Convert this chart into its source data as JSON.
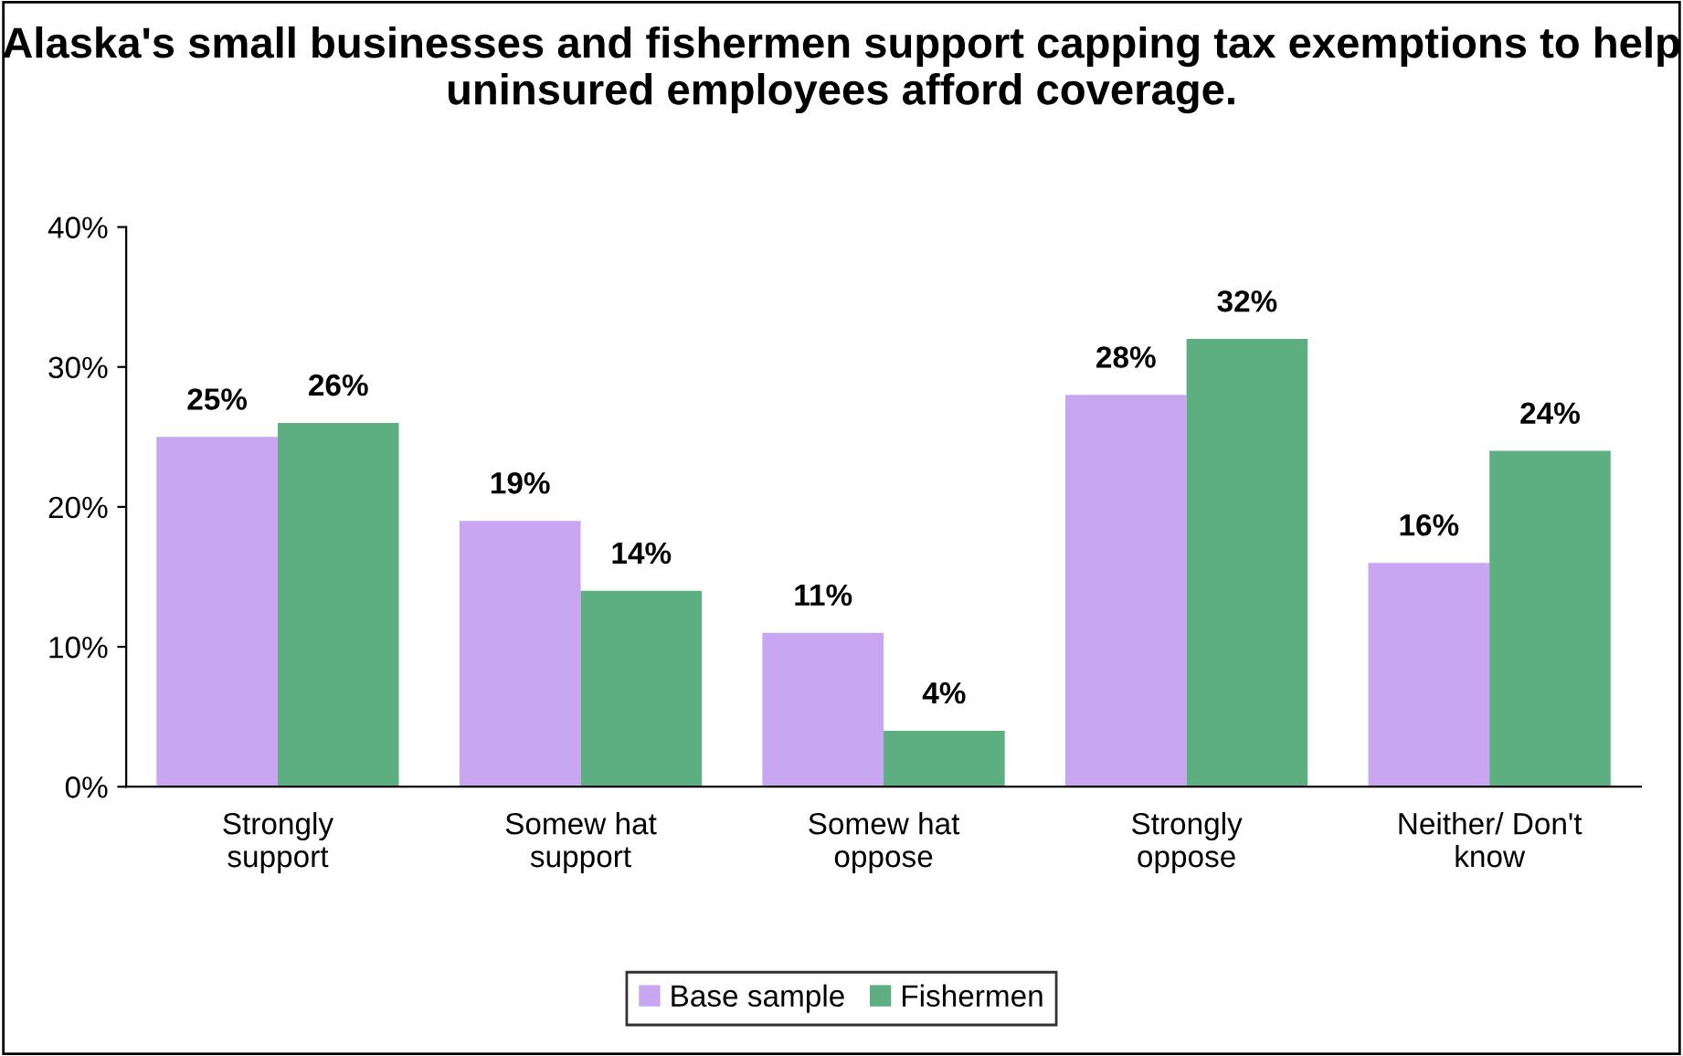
{
  "chart_data": {
    "type": "bar",
    "title": "Alaska's small businesses and fishermen support capping tax exemptions to help uninsured employees afford coverage.",
    "categories": [
      "Strongly support",
      "Somew hat support",
      "Somew hat oppose",
      "Strongly oppose",
      "Neither/ Don't know"
    ],
    "series": [
      {
        "name": "Base sample",
        "color": "#c8a6f2",
        "values": [
          25,
          19,
          11,
          28,
          16
        ],
        "value_labels": [
          "25%",
          "19%",
          "11%",
          "28%",
          "16%"
        ]
      },
      {
        "name": "Fishermen",
        "color": "#5daf82",
        "values": [
          26,
          14,
          4,
          32,
          24
        ],
        "value_labels": [
          "26%",
          "14%",
          "4%",
          "32%",
          "24%"
        ]
      }
    ],
    "ylim": [
      0,
      40
    ],
    "yticks": [
      {
        "value": 0,
        "label": "0%"
      },
      {
        "value": 10,
        "label": "10%"
      },
      {
        "value": 20,
        "label": "20%"
      },
      {
        "value": 30,
        "label": "30%"
      },
      {
        "value": 40,
        "label": "40%"
      }
    ],
    "grid": false,
    "legend": "bottom"
  }
}
